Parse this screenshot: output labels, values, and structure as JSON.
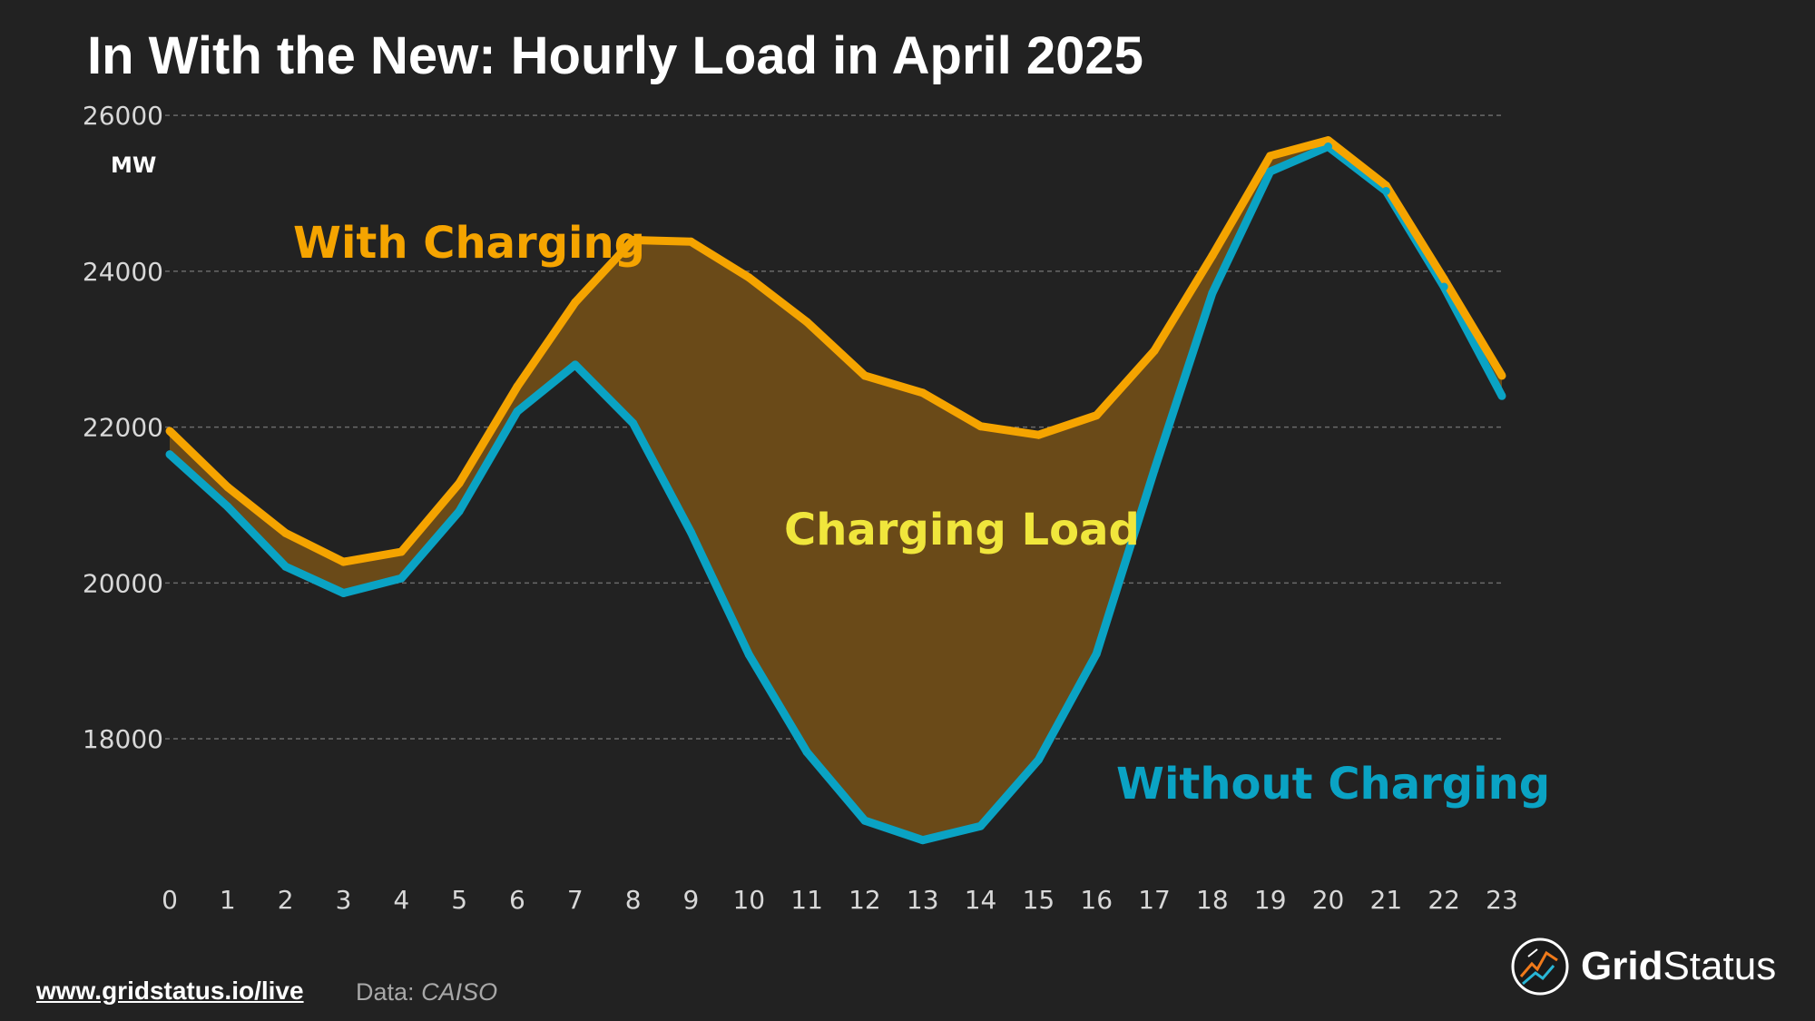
{
  "title": "In With the New: Hourly Load in April 2025",
  "chart_data": {
    "type": "line",
    "x": [
      0,
      1,
      2,
      3,
      4,
      5,
      6,
      7,
      8,
      9,
      10,
      11,
      12,
      13,
      14,
      15,
      16,
      17,
      18,
      19,
      20,
      21,
      22,
      23
    ],
    "x_ticks": [
      "0",
      "1",
      "2",
      "3",
      "4",
      "5",
      "6",
      "7",
      "8",
      "9",
      "10",
      "11",
      "12",
      "13",
      "14",
      "15",
      "16",
      "17",
      "18",
      "19",
      "20",
      "21",
      "22",
      "23"
    ],
    "series": [
      {
        "name": "With Charging",
        "color": "#f5a400",
        "values": [
          21950,
          21230,
          20640,
          20270,
          20400,
          21280,
          22520,
          23600,
          24400,
          24380,
          23920,
          23350,
          22660,
          22440,
          22010,
          21900,
          22150,
          22980,
          24200,
          25480,
          25680,
          25100,
          23900,
          22660
        ]
      },
      {
        "name": "Without Charging",
        "color": "#0aa3c4",
        "values": [
          21650,
          20980,
          20210,
          19870,
          20060,
          20920,
          22200,
          22800,
          22050,
          20650,
          19080,
          17830,
          16950,
          16700,
          16880,
          17730,
          19090,
          21450,
          23720,
          25280,
          25600,
          25030,
          23800,
          22400
        ]
      }
    ],
    "fill_label": "Charging Load",
    "fill_color": "#6a4a18",
    "ylabel": "MW",
    "y_ticks": [
      "18000",
      "20000",
      "22000",
      "24000",
      "26000"
    ],
    "y_tick_values": [
      18000,
      20000,
      22000,
      24000,
      26000
    ],
    "ylim": [
      16300,
      26200
    ],
    "xlim": [
      0,
      23
    ],
    "grid": "horizontal dashed",
    "annotations": {
      "with": {
        "text": "With Charging",
        "color": "#f5a400"
      },
      "without": {
        "text": "Without Charging",
        "color": "#0aa3c4"
      },
      "fill": {
        "text": "Charging Load",
        "color": "#f0e63c"
      }
    }
  },
  "footer": {
    "link": "www.gridstatus.io/live",
    "source_label": "Data:",
    "source_value": "CAISO"
  },
  "brand": {
    "name_part1": "Grid",
    "name_part2": "Status"
  }
}
